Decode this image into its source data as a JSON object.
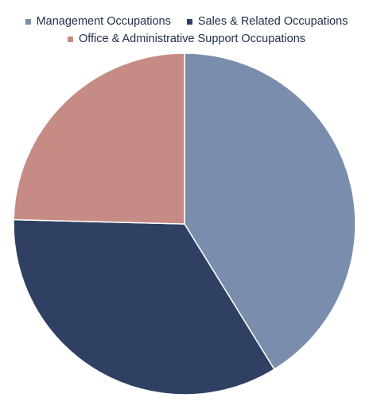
{
  "chart_data": {
    "type": "pie",
    "title": "",
    "categories": [
      "Management Occupations",
      "Sales & Related Occupations",
      "Office & Administrative Support Occupations"
    ],
    "values": [
      41.2,
      34.2,
      24.6
    ],
    "colors": [
      "#7b8dac",
      "#2f4063",
      "#c68b84"
    ],
    "start_angle_deg": 0,
    "direction": "clockwise",
    "legend_position": "top"
  }
}
